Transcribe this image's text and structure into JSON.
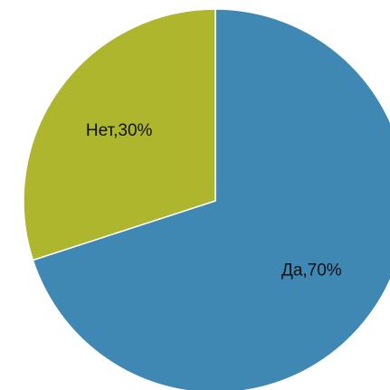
{
  "chart_data": {
    "type": "pie",
    "slices": [
      {
        "label": "Да,70%",
        "value": 70,
        "color": "#3f88b4"
      },
      {
        "label": "Нет,30%",
        "value": 30,
        "color": "#adb62c"
      }
    ],
    "start_angle_deg": 0,
    "direction": "clockwise",
    "legend": "none",
    "title": ""
  }
}
